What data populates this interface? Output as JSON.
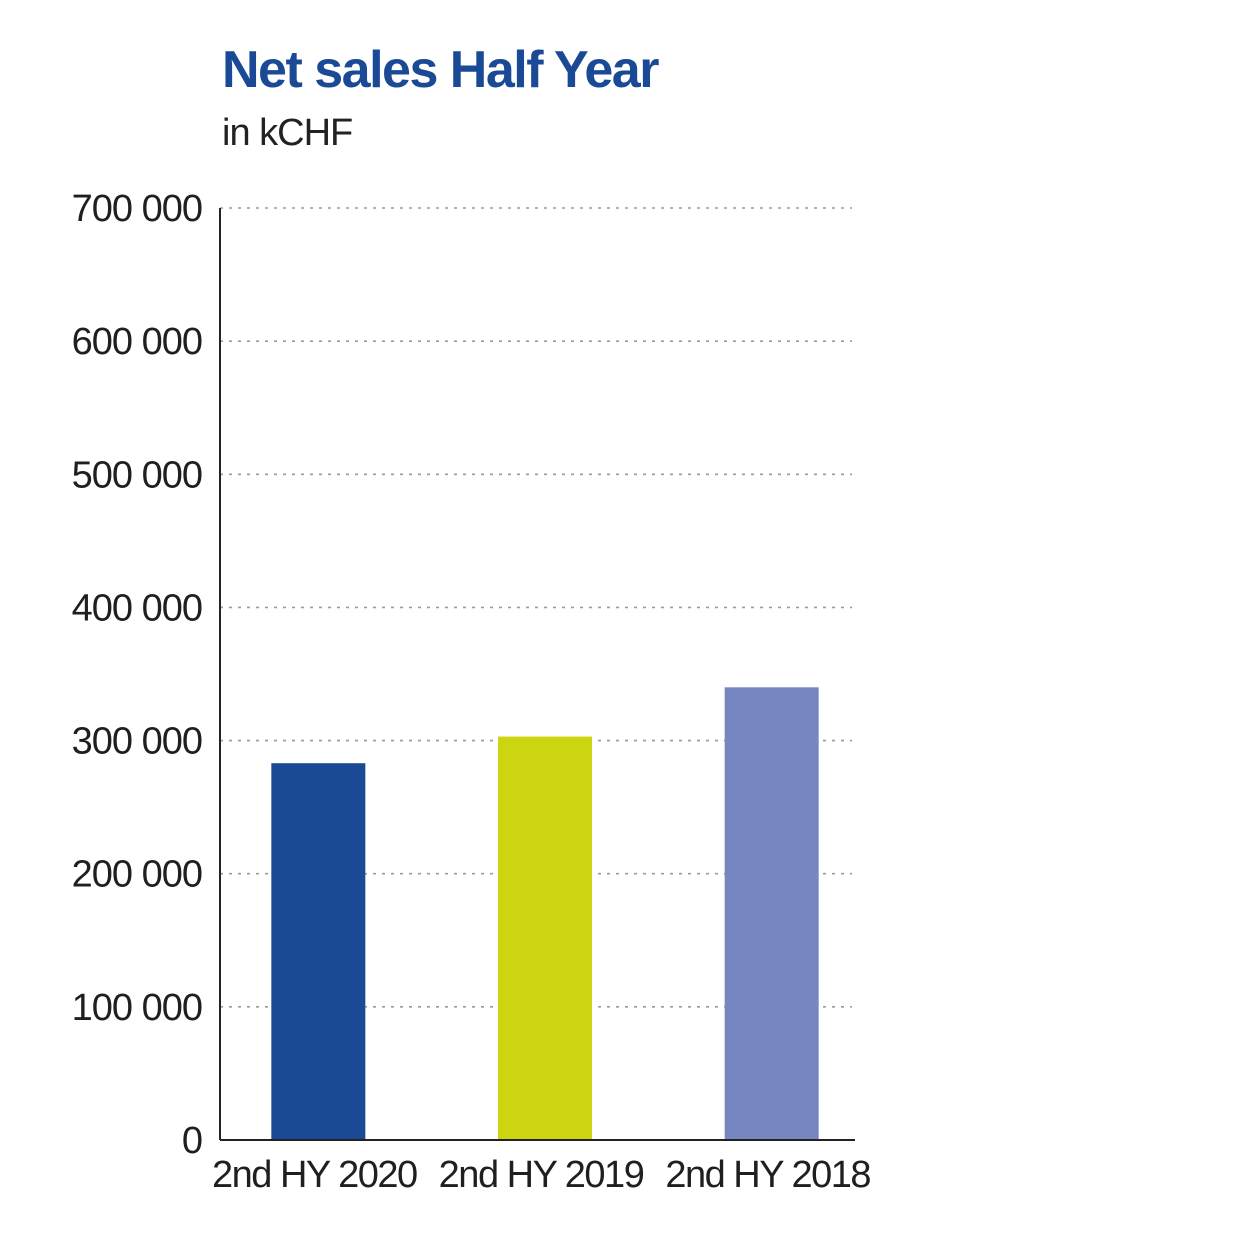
{
  "chart_data": {
    "type": "bar",
    "title": "Net sales Half Year",
    "subtitle": "in kCHF",
    "categories": [
      "2nd HY 2020",
      "2nd HY 2019",
      "2nd HY 2018"
    ],
    "values": [
      283000,
      303000,
      340000
    ],
    "colors": [
      "#1a4a96",
      "#ccd50f",
      "#7686c0"
    ],
    "ylim": [
      0,
      700000
    ],
    "yticks": [
      0,
      100000,
      200000,
      300000,
      400000,
      500000,
      600000,
      700000
    ],
    "ytick_labels": [
      "0",
      "100 000",
      "200 000",
      "300 000",
      "400 000",
      "500 000",
      "600 000",
      "700 000"
    ],
    "grid": true,
    "legend": "none"
  }
}
